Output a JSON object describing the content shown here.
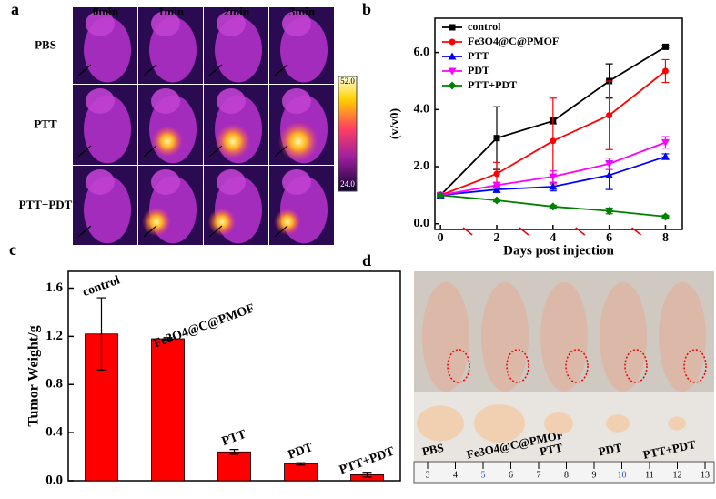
{
  "panel_letters": [
    "a",
    "b",
    "c",
    "d"
  ],
  "thermal": {
    "columns": [
      "0min",
      "1min",
      "2min",
      "3min"
    ],
    "rows": [
      "PBS",
      "PTT",
      "PTT+PDT"
    ],
    "colorbar_max": "52.0",
    "colorbar_min": "24.0"
  },
  "photo": {
    "labels": [
      "PBS",
      "Fe3O4@C@PMOF",
      "PTT",
      "PDT",
      "PTT+PDT"
    ],
    "ruler": [
      3,
      4,
      5,
      6,
      7,
      8,
      9,
      10,
      11,
      12,
      13
    ]
  },
  "chart_data": [
    {
      "type": "line",
      "y_label": "(v/v0)",
      "x_label": "Days post injection",
      "x": [
        0,
        2,
        4,
        6,
        8
      ],
      "xlim": [
        -0.2,
        8.6
      ],
      "xticks": [
        0,
        2,
        4,
        6,
        8
      ],
      "ylim": [
        -0.2,
        7.2
      ],
      "yticks": [
        {
          "value": 0,
          "label": "0.0"
        },
        {
          "value": 2,
          "label": "2.0"
        },
        {
          "value": 4,
          "label": "4.0"
        },
        {
          "value": 6,
          "label": "6.0"
        }
      ],
      "injection_days": [
        1,
        3,
        5,
        7
      ],
      "legend": "upper left",
      "series": [
        {
          "name": "control",
          "color": "#000000",
          "marker": "square",
          "values": [
            1.0,
            3.0,
            3.6,
            5.0,
            6.2
          ],
          "errors": [
            0.05,
            1.1,
            0.1,
            0.6,
            0.05
          ]
        },
        {
          "name": "Fe3O4@C@PMOF",
          "color": "#ff0000",
          "marker": "circle",
          "values": [
            1.0,
            1.75,
            2.9,
            3.8,
            5.35
          ],
          "errors": [
            0.05,
            0.4,
            1.5,
            1.2,
            0.4
          ]
        },
        {
          "name": "PTT",
          "color": "#0000ff",
          "marker": "triangle",
          "values": [
            1.0,
            1.2,
            1.3,
            1.7,
            2.35
          ],
          "errors": [
            0.05,
            0.1,
            0.15,
            0.5,
            0.1
          ]
        },
        {
          "name": "PDT",
          "color": "#ff00ff",
          "marker": "triangle-down",
          "values": [
            1.0,
            1.35,
            1.65,
            2.1,
            2.85
          ],
          "errors": [
            0.05,
            0.1,
            0.2,
            0.2,
            0.2
          ]
        },
        {
          "name": "PTT+PDT",
          "color": "#008000",
          "marker": "diamond",
          "values": [
            1.0,
            0.82,
            0.6,
            0.45,
            0.25
          ],
          "errors": [
            0.05,
            0.05,
            0.05,
            0.1,
            0.05
          ]
        }
      ]
    },
    {
      "type": "bar",
      "y_label": "Tumor Weight/g",
      "color": "#ff0000",
      "categories": [
        "control",
        "Fe3O4@C@PMOF",
        "PTT",
        "PDT",
        "PTT+PDT"
      ],
      "values": [
        1.22,
        1.18,
        0.24,
        0.14,
        0.05
      ],
      "errors": [
        0.3,
        0.01,
        0.02,
        0.01,
        0.02
      ],
      "ylim": [
        0,
        1.74
      ],
      "yticks": [
        {
          "value": 0,
          "label": "0.0"
        },
        {
          "value": 0.4,
          "label": "0.4"
        },
        {
          "value": 0.8,
          "label": "0.8"
        },
        {
          "value": 1.2,
          "label": "1.2"
        },
        {
          "value": 1.6,
          "label": "1.6"
        }
      ]
    }
  ]
}
